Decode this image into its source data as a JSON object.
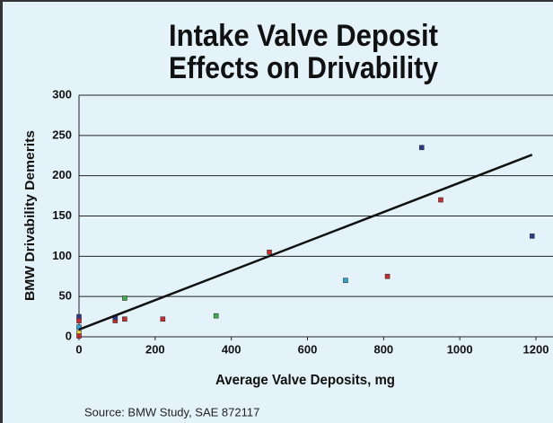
{
  "chart_data": {
    "type": "scatter",
    "title": [
      "Intake Valve Deposit",
      "Effects on Drivability"
    ],
    "x_label": "Average Valve Deposits, mg",
    "y_label": "BMW Drivability Demerits",
    "annotation": "Source: BMW Study, SAE 872117",
    "x": [
      900,
      950,
      1190,
      500,
      810,
      700,
      360,
      220,
      120,
      120,
      95,
      95,
      0,
      0,
      0,
      0,
      0
    ],
    "values": [
      235,
      170,
      125,
      105,
      75,
      70,
      26,
      22,
      22,
      48,
      20,
      24,
      25,
      20,
      12,
      5,
      1
    ],
    "colors": [
      "#2a3a8c",
      "#cc2a2a",
      "#2a3a8c",
      "#cc2a2a",
      "#cc2a2a",
      "#29a8d8",
      "#3cb04a",
      "#cc2a2a",
      "#cc2a2a",
      "#3cb04a",
      "#cc2a2a",
      "#2a3a8c",
      "#2a3a8c",
      "#cc2a2a",
      "#29a8d8",
      "#e8d83a",
      "#cc2a2a"
    ],
    "trendline": {
      "x": [
        0,
        1190
      ],
      "values": [
        9,
        226
      ],
      "color": "#111111"
    },
    "xlim": [
      0,
      1200
    ],
    "xticks": [
      0,
      200,
      400,
      600,
      800,
      1000,
      1200
    ],
    "ylim": [
      0,
      300
    ],
    "yticks": [
      0,
      50,
      100,
      150,
      200,
      250,
      300
    ],
    "grid": true
  }
}
